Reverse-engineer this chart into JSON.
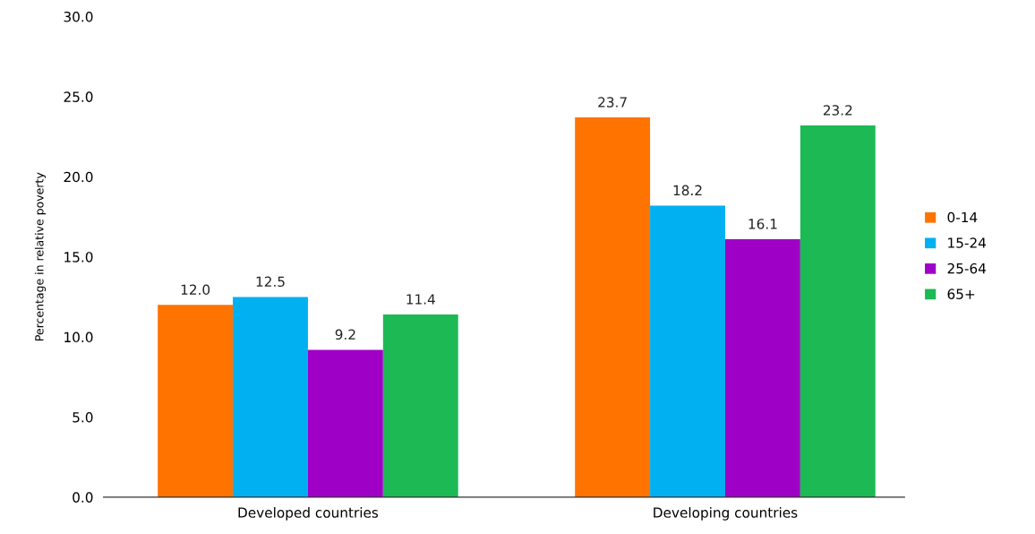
{
  "chart_data": {
    "type": "bar",
    "ylabel": "Percentage in relative poverty",
    "categories": [
      "Developed countries",
      "Developing countries"
    ],
    "series": [
      {
        "name": "0-14",
        "color": "#ff7300",
        "values": [
          12.0,
          23.7
        ],
        "value_labels": [
          "12.0",
          "23.7"
        ]
      },
      {
        "name": "15-24",
        "color": "#00b0f0",
        "values": [
          12.5,
          18.2
        ],
        "value_labels": [
          "12.5",
          "18.2"
        ]
      },
      {
        "name": "25-64",
        "color": "#9e00c5",
        "values": [
          9.2,
          16.1
        ],
        "value_labels": [
          "9.2",
          "16.1"
        ]
      },
      {
        "name": "65+",
        "color": "#1db954",
        "values": [
          11.4,
          23.2
        ],
        "value_labels": [
          "11.4",
          "23.2"
        ]
      }
    ],
    "ylim": [
      0,
      30
    ],
    "yticks": [
      {
        "value": 0,
        "label": "0.0"
      },
      {
        "value": 5,
        "label": "5.0"
      },
      {
        "value": 10,
        "label": "10.0"
      },
      {
        "value": 15,
        "label": "15.0"
      },
      {
        "value": 20,
        "label": "20.0"
      },
      {
        "value": 25,
        "label": "25.0"
      },
      {
        "value": 30,
        "label": "30.0"
      }
    ],
    "grid": false,
    "legend": "right"
  }
}
